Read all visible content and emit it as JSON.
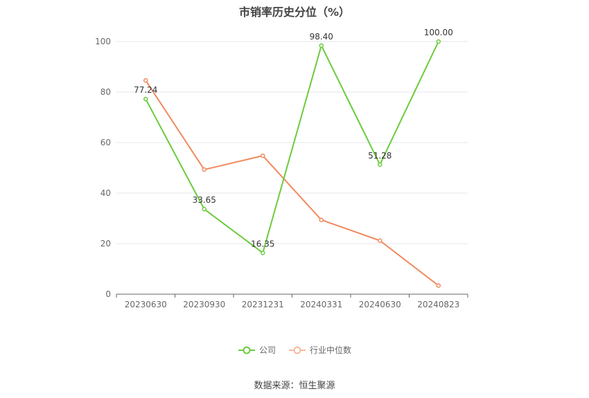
{
  "chart_data": {
    "type": "line",
    "title": "市销率历史分位（%）",
    "categories": [
      "20230630",
      "20230930",
      "20231231",
      "20240331",
      "20240630",
      "20240823"
    ],
    "series": [
      {
        "name": "公司",
        "color": "#6acb3b",
        "values": [
          77.24,
          33.65,
          16.35,
          98.4,
          51.28,
          100.0
        ],
        "labels": [
          "77.24",
          "33.65",
          "16.35",
          "98.40",
          "51.28",
          "100.00"
        ]
      },
      {
        "name": "行业中位数",
        "color": "#f08a5d",
        "values": [
          84.6,
          49.3,
          54.8,
          29.4,
          21.2,
          3.4
        ]
      }
    ],
    "ylim": [
      0,
      100
    ],
    "yticks": [
      0,
      20,
      40,
      60,
      80,
      100
    ],
    "grid": true,
    "legend": "bottom-center"
  },
  "source": "数据来源：恒生聚源"
}
